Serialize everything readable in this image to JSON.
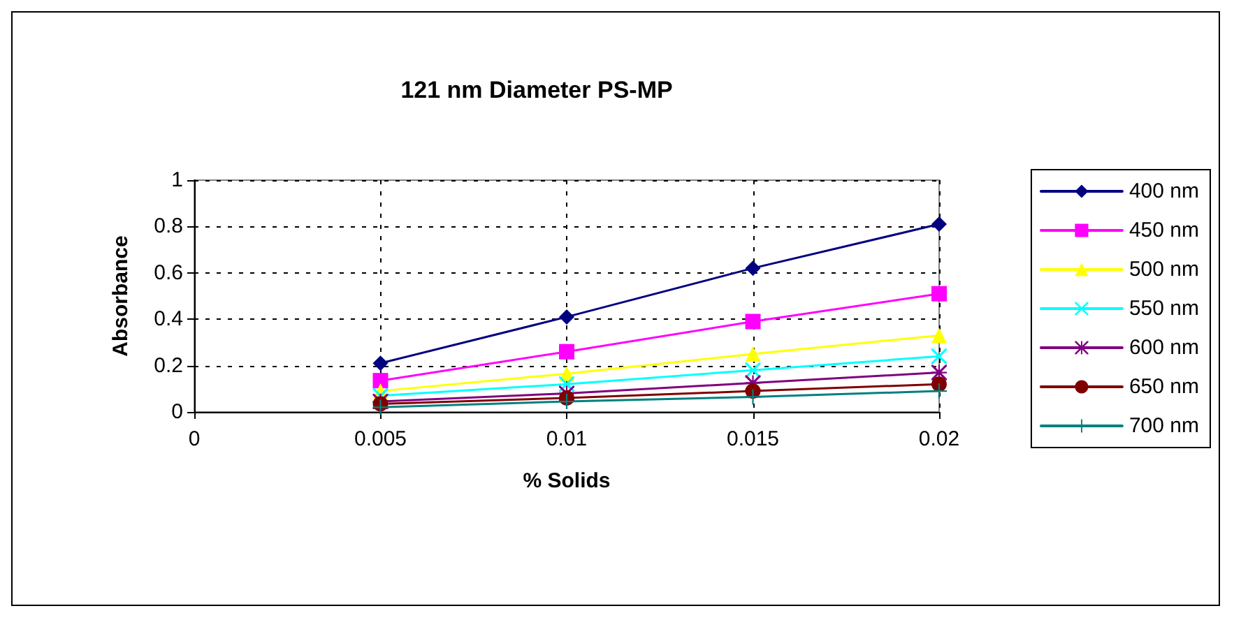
{
  "chart_data": {
    "type": "line",
    "title": "121 nm Diameter PS-MP",
    "xlabel": "% Solids",
    "ylabel": "Absorbance",
    "x": [
      0.005,
      0.01,
      0.015,
      0.02
    ],
    "xlim": [
      0,
      0.02
    ],
    "xticks": [
      0,
      0.005,
      0.01,
      0.015,
      0.02
    ],
    "ylim": [
      0,
      1
    ],
    "yticks": [
      0,
      0.2,
      0.4,
      0.6,
      0.8,
      1
    ],
    "grid": true,
    "legend": "right",
    "line_style": "solid",
    "series": [
      {
        "name": "400 nm",
        "color": "#000080",
        "marker": "diamond",
        "values": [
          0.21,
          0.41,
          0.62,
          0.81
        ]
      },
      {
        "name": "450 nm",
        "color": "#ff00ff",
        "marker": "square",
        "values": [
          0.135,
          0.26,
          0.39,
          0.51
        ]
      },
      {
        "name": "500 nm",
        "color": "#ffff00",
        "marker": "triangle",
        "values": [
          0.09,
          0.165,
          0.25,
          0.33
        ]
      },
      {
        "name": "550 nm",
        "color": "#00ffff",
        "marker": "cross",
        "values": [
          0.07,
          0.12,
          0.18,
          0.24
        ]
      },
      {
        "name": "600 nm",
        "color": "#800080",
        "marker": "star",
        "values": [
          0.045,
          0.08,
          0.125,
          0.17
        ]
      },
      {
        "name": "650 nm",
        "color": "#800000",
        "marker": "circle",
        "values": [
          0.035,
          0.06,
          0.09,
          0.12
        ]
      },
      {
        "name": "700 nm",
        "color": "#008080",
        "marker": "plus",
        "values": [
          0.02,
          0.045,
          0.065,
          0.09
        ]
      }
    ]
  }
}
